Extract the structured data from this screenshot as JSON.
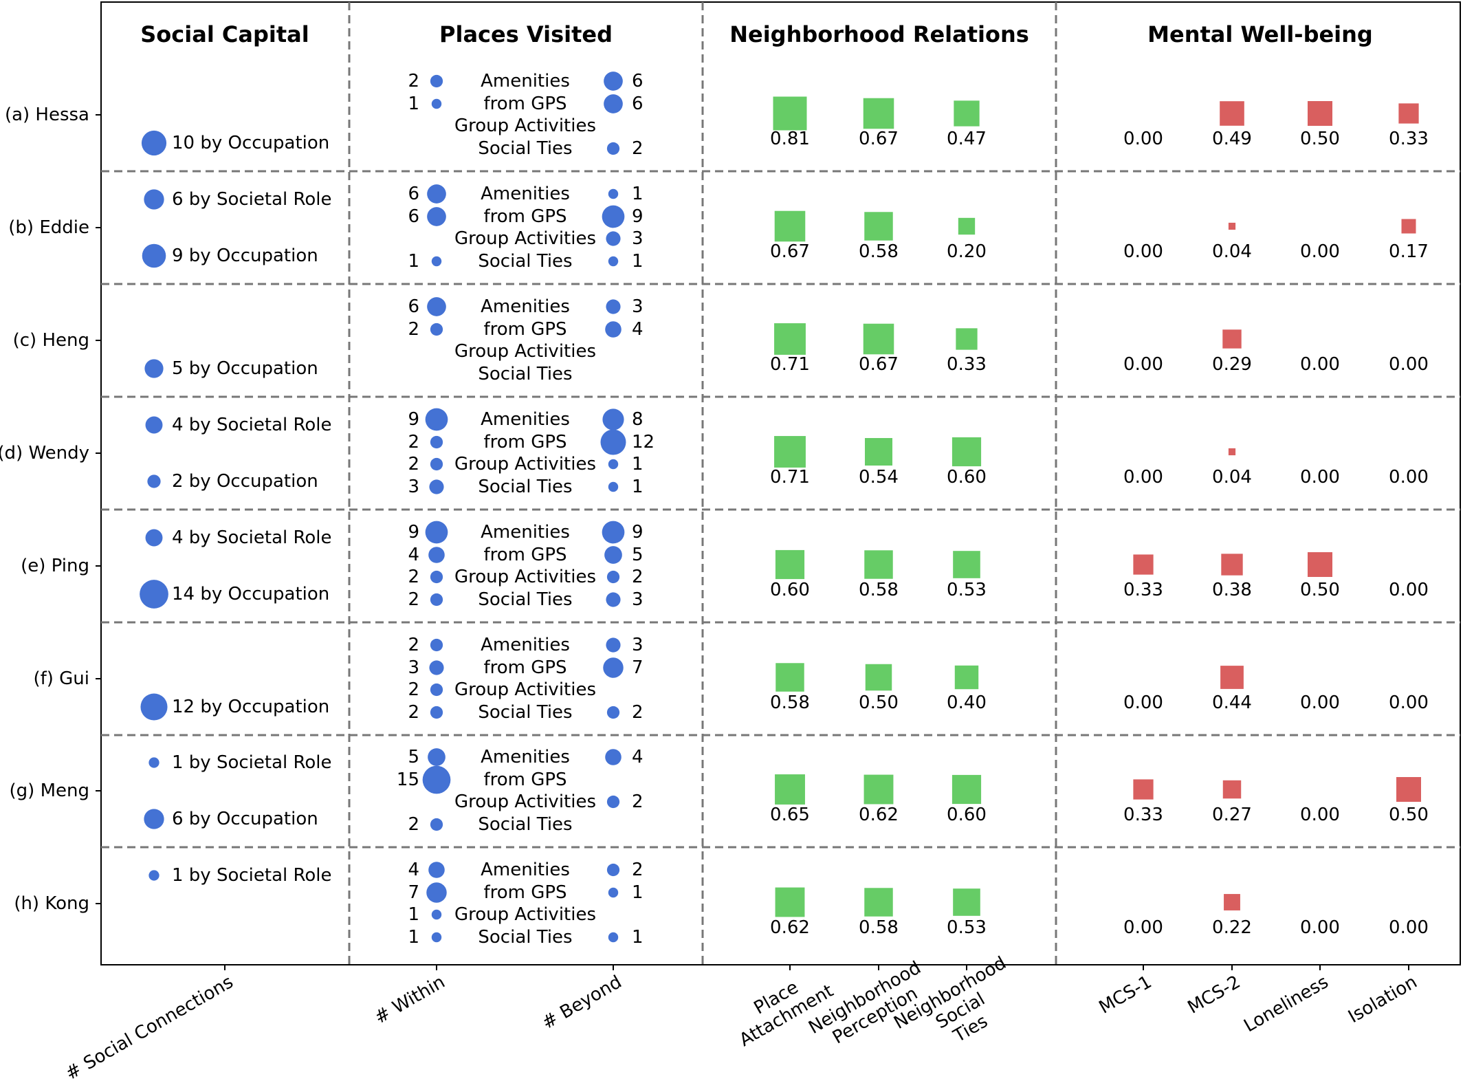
{
  "chart_data": {
    "type": "bubble-matrix",
    "panels": [
      "Social Capital",
      "Places Visited",
      "Neighborhood Relations",
      "Mental Well-being"
    ],
    "participants": [
      "(a) Hessa",
      "(b) Eddie",
      "(c) Heng",
      "(d) Wendy",
      "(e) Ping",
      "(f) Gui",
      "(g) Meng",
      "(h) Kong"
    ],
    "x_ticks": {
      "social": [
        "# Social Connections"
      ],
      "places": [
        "# Within",
        "# Beyond"
      ],
      "neighborhood": [
        "Place\nAttachment",
        "Neighborhood\nPerception",
        "Neighborhood\nSocial\nTies"
      ],
      "mental": [
        "MCS-1",
        "MCS-2",
        "Loneliness",
        "Isolation"
      ]
    },
    "place_categories": [
      "Amenities",
      "from GPS",
      "Group Activities",
      "Social Ties"
    ],
    "social_labels": {
      "role": "by Societal Role",
      "occupation": "by Occupation"
    },
    "social_capital": [
      {
        "role": null,
        "occupation": 10
      },
      {
        "role": 6,
        "occupation": 9
      },
      {
        "role": null,
        "occupation": 5
      },
      {
        "role": 4,
        "occupation": 2
      },
      {
        "role": 4,
        "occupation": 14
      },
      {
        "role": null,
        "occupation": 12
      },
      {
        "role": 1,
        "occupation": 6
      },
      {
        "role": 1,
        "occupation": null
      }
    ],
    "places_within": [
      [
        2,
        1,
        null,
        null
      ],
      [
        6,
        6,
        null,
        1
      ],
      [
        6,
        2,
        null,
        null
      ],
      [
        9,
        2,
        2,
        3
      ],
      [
        9,
        4,
        2,
        2
      ],
      [
        2,
        3,
        2,
        2
      ],
      [
        5,
        15,
        null,
        2
      ],
      [
        4,
        7,
        1,
        1
      ]
    ],
    "places_beyond": [
      [
        6,
        6,
        null,
        2
      ],
      [
        1,
        9,
        3,
        1
      ],
      [
        3,
        4,
        null,
        null
      ],
      [
        8,
        12,
        1,
        1
      ],
      [
        9,
        5,
        2,
        3
      ],
      [
        3,
        7,
        null,
        2
      ],
      [
        4,
        null,
        2,
        null
      ],
      [
        2,
        1,
        null,
        1
      ]
    ],
    "neighborhood_relations": [
      [
        "0.81",
        "0.67",
        "0.47"
      ],
      [
        "0.67",
        "0.58",
        "0.20"
      ],
      [
        "0.71",
        "0.67",
        "0.33"
      ],
      [
        "0.71",
        "0.54",
        "0.60"
      ],
      [
        "0.60",
        "0.58",
        "0.53"
      ],
      [
        "0.58",
        "0.50",
        "0.40"
      ],
      [
        "0.65",
        "0.62",
        "0.60"
      ],
      [
        "0.62",
        "0.58",
        "0.53"
      ]
    ],
    "mental_wellbeing": [
      [
        "0.00",
        "0.49",
        "0.50",
        "0.33"
      ],
      [
        "0.00",
        "0.04",
        "0.00",
        "0.17"
      ],
      [
        "0.00",
        "0.29",
        "0.00",
        "0.00"
      ],
      [
        "0.00",
        "0.04",
        "0.00",
        "0.00"
      ],
      [
        "0.33",
        "0.38",
        "0.50",
        "0.00"
      ],
      [
        "0.00",
        "0.44",
        "0.00",
        "0.00"
      ],
      [
        "0.33",
        "0.27",
        "0.00",
        "0.50"
      ],
      [
        "0.00",
        "0.22",
        "0.00",
        "0.00"
      ]
    ],
    "colors": {
      "circle": "#4472d4",
      "green": "#66cc66",
      "red": "#d95f5f",
      "grid": "#777777",
      "frame": "#000000"
    },
    "grid": "dashed panel and row separators",
    "legend": "none"
  }
}
